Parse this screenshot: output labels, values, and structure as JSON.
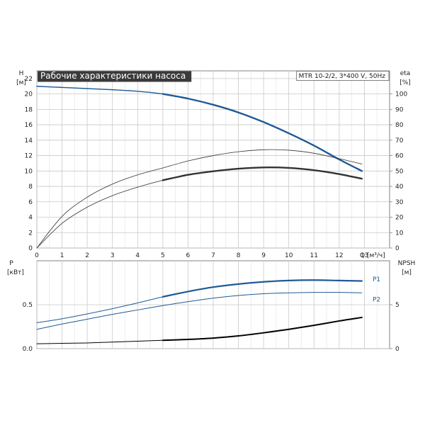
{
  "chart_data": [
    {
      "type": "line",
      "title": "Рабочие характеристики насоса",
      "subtitle": "MTR 10-2/2, 3*400 V, 50Hz",
      "y_title": "H",
      "y_unit": "[м]",
      "y2_title": "eta",
      "y2_unit": "[%]",
      "x_title": "Q",
      "x_unit": "[м³/ч]",
      "xlim": [
        0,
        14
      ],
      "ylim": [
        0,
        23
      ],
      "y2lim": [
        0,
        115
      ],
      "x_ticks": [
        "0",
        "1",
        "2",
        "3",
        "4",
        "5",
        "6",
        "7",
        "8",
        "9",
        "10",
        "11",
        "12",
        "13"
      ],
      "y_ticks": [
        "0",
        "2",
        "4",
        "6",
        "8",
        "10",
        "12",
        "14",
        "16",
        "18",
        "20",
        "22"
      ],
      "y2_ticks": [
        "0",
        "10",
        "20",
        "30",
        "40",
        "50",
        "60",
        "70",
        "80",
        "90",
        "100"
      ],
      "grid": true,
      "colors": {
        "head": "#1f5a96",
        "curve": "#000000",
        "thin": "#333333"
      },
      "series": [
        {
          "kind": "head",
          "x": [
            0,
            1,
            2,
            3,
            4,
            5,
            6,
            7,
            8,
            9,
            10,
            11,
            12,
            12.9
          ],
          "values": [
            21.0,
            20.85,
            20.7,
            20.55,
            20.35,
            20.0,
            19.4,
            18.6,
            17.6,
            16.35,
            14.9,
            13.3,
            11.5,
            10.0
          ],
          "emphasis_from": 5
        },
        {
          "kind": "eta_thin",
          "x": [
            0,
            1,
            2,
            3,
            4,
            5,
            6,
            7,
            8,
            9,
            10,
            11,
            12,
            12.9
          ],
          "values": [
            0,
            20.5,
            33.0,
            41.5,
            47.5,
            52.0,
            56.5,
            60.0,
            62.5,
            63.8,
            63.5,
            61.5,
            58.0,
            54.5
          ]
        },
        {
          "kind": "eta",
          "x": [
            0,
            1,
            2,
            3,
            4,
            5,
            6,
            7,
            8,
            9,
            10,
            11,
            12,
            12.9
          ],
          "values": [
            0,
            16.0,
            26.5,
            34.0,
            39.5,
            44.0,
            47.5,
            49.8,
            51.5,
            52.3,
            52.0,
            50.5,
            48.0,
            45.0
          ],
          "emphasis_from": 5
        }
      ]
    },
    {
      "type": "line",
      "y_title": "P",
      "y_unit": "[кВт]",
      "y2_title": "NPSH",
      "y2_unit": "[м]",
      "xlim": [
        0,
        14
      ],
      "ylim": [
        0,
        1.0
      ],
      "y2lim": [
        0,
        10
      ],
      "y_ticks": [
        "0.0",
        "0.5"
      ],
      "y2_ticks": [
        "0",
        "5"
      ],
      "grid": true,
      "series": [
        {
          "name": "P1",
          "kind": "p1",
          "x": [
            0,
            1,
            2,
            3,
            4,
            5,
            6,
            7,
            8,
            9,
            10,
            11,
            12,
            12.9
          ],
          "values": [
            0.295,
            0.34,
            0.395,
            0.455,
            0.52,
            0.59,
            0.65,
            0.7,
            0.735,
            0.76,
            0.775,
            0.78,
            0.775,
            0.77
          ],
          "emphasis_from": 5
        },
        {
          "name": "P2",
          "kind": "p2",
          "x": [
            0,
            1,
            2,
            3,
            4,
            5,
            6,
            7,
            8,
            9,
            10,
            11,
            12,
            12.9
          ],
          "values": [
            0.22,
            0.28,
            0.335,
            0.39,
            0.44,
            0.49,
            0.535,
            0.575,
            0.605,
            0.625,
            0.635,
            0.64,
            0.64,
            0.635
          ]
        },
        {
          "kind": "npsh",
          "x": [
            0,
            1,
            2,
            3,
            4,
            5,
            6,
            7,
            8,
            9,
            10,
            11,
            12,
            12.9
          ],
          "values": [
            0.55,
            0.6,
            0.65,
            0.75,
            0.85,
            0.95,
            1.05,
            1.2,
            1.45,
            1.8,
            2.2,
            2.65,
            3.15,
            3.55
          ],
          "emphasis_from": 5
        }
      ]
    }
  ]
}
